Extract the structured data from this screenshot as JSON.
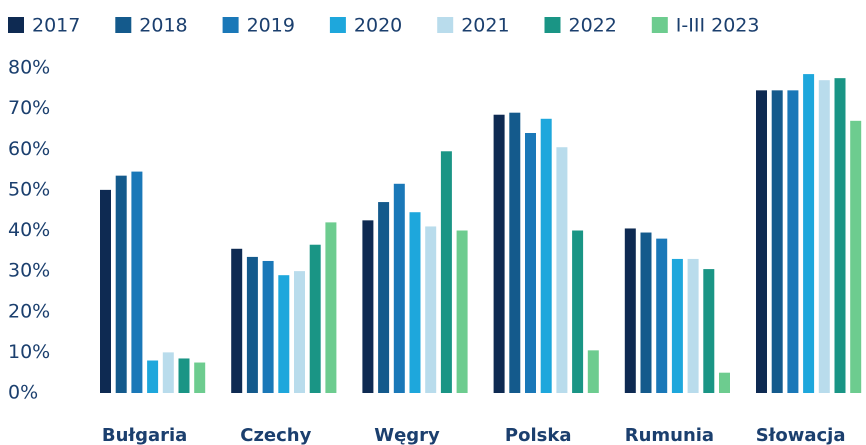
{
  "chart_data": {
    "type": "bar",
    "categories": [
      "Bułgaria",
      "Czechy",
      "Węgry",
      "Polska",
      "Rumunia",
      "Słowacja"
    ],
    "series": [
      {
        "name": "2017",
        "color": "#0e2a52",
        "values": [
          50,
          35.5,
          42.5,
          68.5,
          40.5,
          74.5
        ]
      },
      {
        "name": "2018",
        "color": "#145a8c",
        "values": [
          53.5,
          33.5,
          47,
          69,
          39.5,
          74.5
        ]
      },
      {
        "name": "2019",
        "color": "#1a78b8",
        "values": [
          54.5,
          32.5,
          51.5,
          64,
          38,
          74.5
        ]
      },
      {
        "name": "2020",
        "color": "#1ea7dc",
        "values": [
          8,
          29,
          44.5,
          67.5,
          33,
          78.5
        ]
      },
      {
        "name": "2021",
        "color": "#b9dcec",
        "values": [
          10,
          30,
          41,
          60.5,
          33,
          77
        ]
      },
      {
        "name": "2022",
        "color": "#1a9585",
        "values": [
          8.5,
          36.5,
          59.5,
          40,
          30.5,
          77.5
        ]
      },
      {
        "name": "I-III 2023",
        "color": "#6dcc8f",
        "values": [
          7.5,
          42,
          40,
          10.5,
          5,
          67
        ]
      }
    ],
    "ylim": [
      0,
      80
    ],
    "yticks": [
      {
        "value": 0,
        "label": "0%"
      },
      {
        "value": 10,
        "label": "10%"
      },
      {
        "value": 20,
        "label": "20%"
      },
      {
        "value": 30,
        "label": "30%"
      },
      {
        "value": 40,
        "label": "40%"
      },
      {
        "value": 50,
        "label": "50%"
      },
      {
        "value": 60,
        "label": "60%"
      },
      {
        "value": 70,
        "label": "70%"
      },
      {
        "value": 80,
        "label": "80%"
      }
    ],
    "grid": false,
    "legend": "top"
  }
}
